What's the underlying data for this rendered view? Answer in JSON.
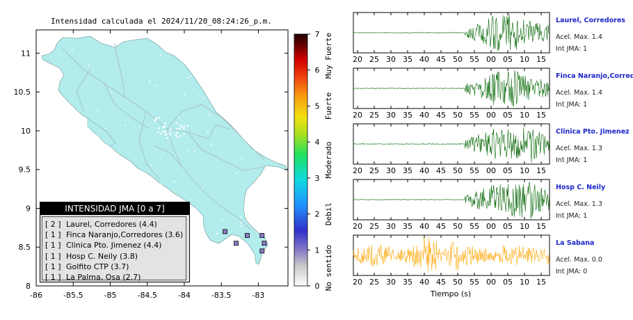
{
  "map": {
    "title": "Intensidad calculada el 2024/11/20_08:24:26_p.m.",
    "x_ticks": [
      "-86",
      "-85.5",
      "-85",
      "-84.5",
      "-84",
      "-83.5",
      "-83"
    ],
    "y_ticks": [
      "11",
      "10.5",
      "10",
      "9.5",
      "9",
      "8.5",
      "8"
    ],
    "x_range": [
      -86,
      -82.6
    ],
    "y_range": [
      8,
      11.3
    ],
    "land_color": "#b2ecec",
    "sea_color": "#ffffff"
  },
  "colorbar": {
    "ticks": [
      "0",
      "1",
      "2",
      "3",
      "4",
      "5",
      "6",
      "7"
    ],
    "range": [
      0,
      7
    ],
    "category_labels": [
      "No sentido",
      "Debil",
      "Moderado",
      "Fuerte",
      "Muy Fuerte"
    ]
  },
  "legend": {
    "title": "INTENSIDAD JMA [0 a 7]",
    "items": [
      {
        "count": "[ 2 ]",
        "label": "Laurel, Corredores (4.4)"
      },
      {
        "count": "[ 1 ]",
        "label": "Finca Naranjo,Corredores (3.6)"
      },
      {
        "count": "[ 1 ]",
        "label": "Clinica Pto. Jimenez (4.4)"
      },
      {
        "count": "[ 1 ]",
        "label": "Hosp C. Neily (3.8)"
      },
      {
        "count": "[ 1 ]",
        "label": "Golfito CTP (3.7)"
      },
      {
        "count": "[ 1 ]",
        "label": "La Palma, Osa (2.7)"
      }
    ]
  },
  "chart_data": [
    {
      "type": "scatter",
      "title": "Intensidad calculada el 2024/11/20_08:24:26_p.m.",
      "xlabel": "",
      "ylabel": "",
      "xlim": [
        -86,
        -82.6
      ],
      "ylim": [
        8,
        11.3
      ],
      "series": [
        {
          "name": "Laurel, Corredores",
          "x": [
            -82.95
          ],
          "y": [
            8.45
          ],
          "intensity": 4.4
        },
        {
          "name": "Finca Naranjo,Corredores",
          "x": [
            -82.92
          ],
          "y": [
            8.55
          ],
          "intensity": 3.6
        },
        {
          "name": "Clinica Pto. Jimenez",
          "x": [
            -83.3
          ],
          "y": [
            8.55
          ],
          "intensity": 4.4
        },
        {
          "name": "Hosp C. Neily",
          "x": [
            -82.95
          ],
          "y": [
            8.65
          ],
          "intensity": 3.8
        },
        {
          "name": "Golfito CTP",
          "x": [
            -83.15
          ],
          "y": [
            8.65
          ],
          "intensity": 3.7
        },
        {
          "name": "La Palma, Osa",
          "x": [
            -83.45
          ],
          "y": [
            8.7
          ],
          "intensity": 2.7
        }
      ]
    },
    {
      "type": "line",
      "xlabel": "Tiempo (s)",
      "x_ticks": [
        "20",
        "25",
        "30",
        "35",
        "40",
        "45",
        "50",
        "55",
        "00",
        "05",
        "10",
        "15"
      ],
      "series": [
        {
          "name": "Laurel, Corredores",
          "color": "#006400",
          "accel_max": "Acel. Max. 1.4",
          "int_jma": "Int JMA: 1",
          "onset_tick": "53",
          "peak_tick": "05"
        },
        {
          "name": "Finca Naranjo,Corredores",
          "color": "#006400",
          "accel_max": "Acel. Max. 1.4",
          "int_jma": "Int JMA: 1",
          "onset_tick": "53",
          "peak_tick": "05"
        },
        {
          "name": "Clinica Pto. Jimenez",
          "color": "#006400",
          "accel_max": "Acel. Max. 1.3",
          "int_jma": "Int JMA: 1",
          "onset_tick": "58",
          "peak_tick": "10"
        },
        {
          "name": "Hosp C. Neily",
          "color": "#006400",
          "accel_max": "Acel. Max. 1.3",
          "int_jma": "Int JMA: 1",
          "onset_tick": "56",
          "peak_tick": "10"
        },
        {
          "name": "La Sabana",
          "color": "#ffa500",
          "accel_max": "Acel. Max. 0.0",
          "int_jma": "Int JMA: 0",
          "onset_tick": "20",
          "peak_tick": "45"
        }
      ]
    }
  ]
}
